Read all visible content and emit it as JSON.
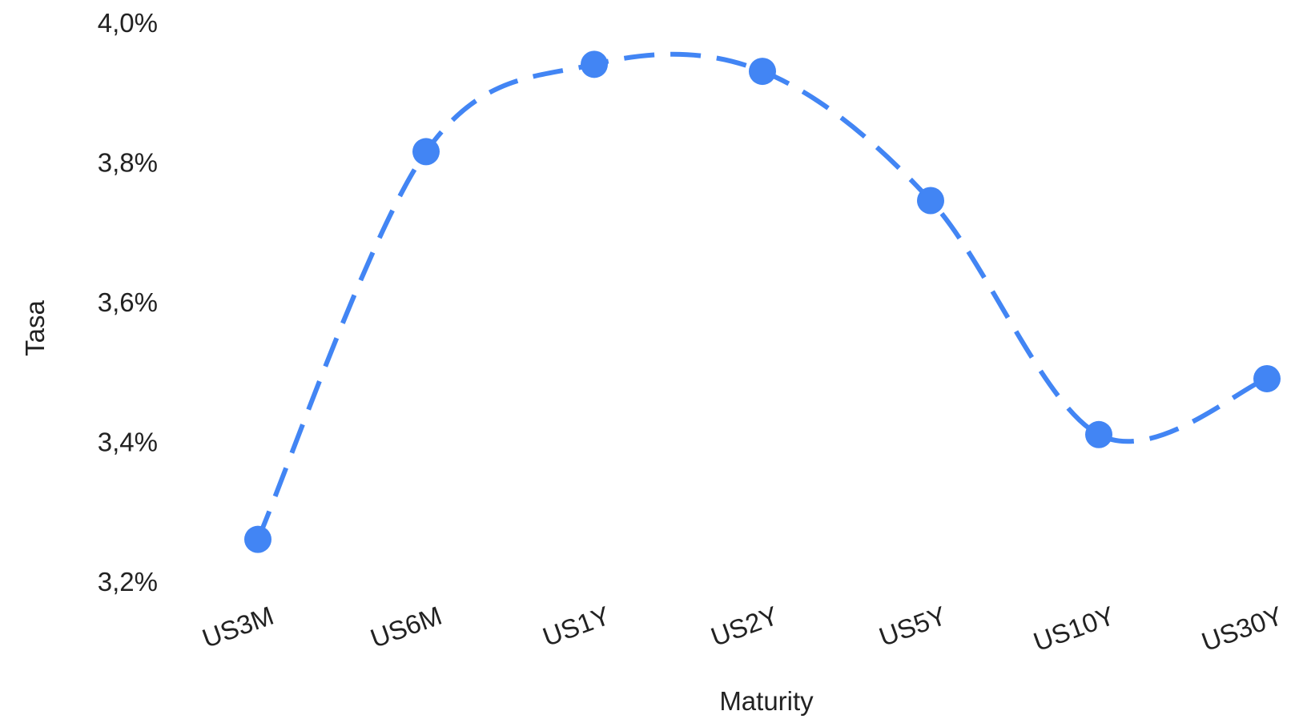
{
  "chart_data": {
    "type": "line",
    "categories": [
      "US3M",
      "US6M",
      "US1Y",
      "US2Y",
      "US5Y",
      "US10Y",
      "US30Y"
    ],
    "values": [
      3.26,
      3.815,
      3.94,
      3.93,
      3.745,
      3.41,
      3.49
    ],
    "xlabel": "Maturity",
    "ylabel": "Tasa",
    "ylim": [
      3.2,
      4.0
    ],
    "yticks": [
      "3,2%",
      "3,4%",
      "3,6%",
      "3,8%",
      "4,0%"
    ],
    "ytick_values": [
      3.2,
      3.4,
      3.6,
      3.8,
      4.0
    ],
    "line_style": "dashed-smooth",
    "grid": false,
    "legend": "none",
    "color": "#4285f4"
  }
}
